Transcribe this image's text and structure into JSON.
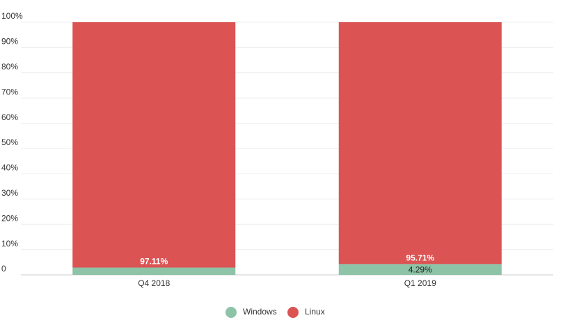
{
  "chart_data": {
    "type": "stacked-bar",
    "categories": [
      "Q4 2018",
      "Q1 2019"
    ],
    "series": [
      {
        "name": "Windows",
        "color": "#8dc3a7",
        "values": [
          2.89,
          4.29
        ],
        "value_labels": [
          null,
          "4.29%"
        ]
      },
      {
        "name": "Linux",
        "color": "#db5353",
        "values": [
          97.11,
          95.71
        ],
        "value_labels": [
          "97.11%",
          "95.71%"
        ]
      }
    ],
    "ylim": [
      0,
      100
    ],
    "yticks": [
      0,
      {
        "value": 10,
        "label": "10%"
      },
      {
        "value": 20,
        "label": "20%"
      },
      {
        "value": 30,
        "label": "30%"
      },
      {
        "value": 40,
        "label": "40%"
      },
      {
        "value": 50,
        "label": "50%"
      },
      {
        "value": 60,
        "label": "60%"
      },
      {
        "value": 70,
        "label": "70%"
      },
      {
        "value": 80,
        "label": "80%"
      },
      {
        "value": 90,
        "label": "90%"
      },
      {
        "value": 100,
        "label": "100%"
      }
    ],
    "grid": true
  }
}
